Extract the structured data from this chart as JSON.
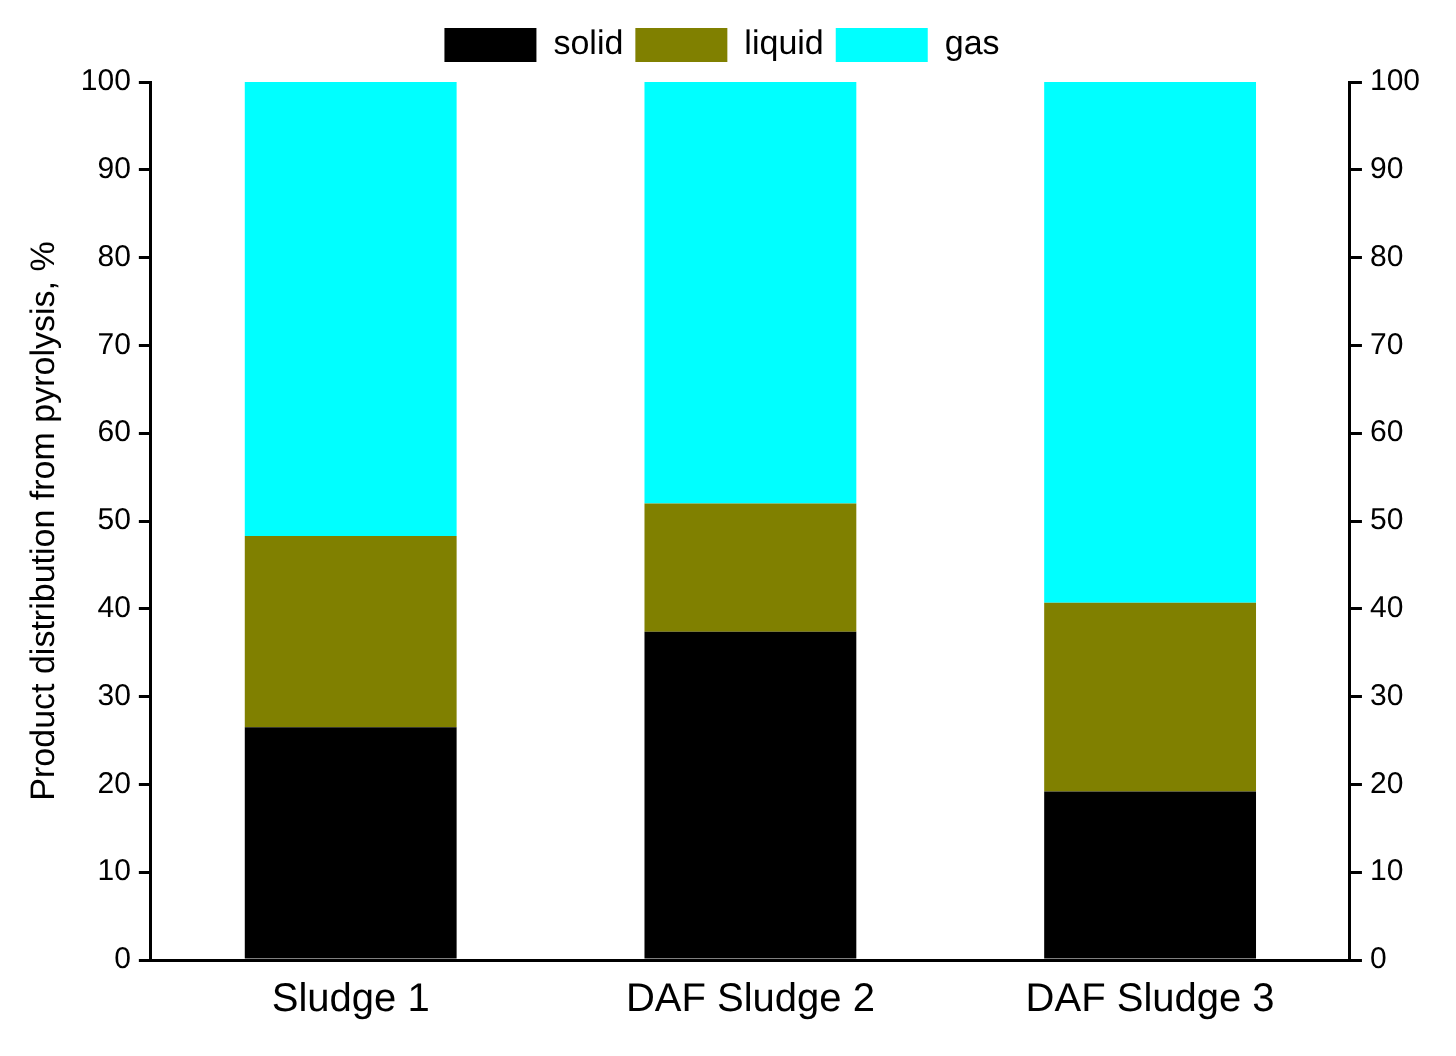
{
  "chart_data": {
    "type": "bar",
    "stacked": true,
    "ylabel": "Product distribution from pyrolysis, %",
    "categories": [
      "Sludge 1",
      "DAF Sludge 2",
      "DAF Sludge 3"
    ],
    "series": [
      {
        "name": "solid",
        "color": "#000000",
        "values": [
          26.5,
          37.4,
          19.2
        ]
      },
      {
        "name": "liquid",
        "color": "#808000",
        "values": [
          21.8,
          14.6,
          21.5
        ]
      },
      {
        "name": "gas",
        "color": "#00ffff",
        "values": [
          51.7,
          48.0,
          59.3
        ]
      }
    ],
    "ylim": [
      0,
      100
    ],
    "yticks": [
      0,
      10,
      20,
      30,
      40,
      50,
      60,
      70,
      80,
      90,
      100
    ],
    "y2lim": [
      0,
      100
    ],
    "y2ticks": [
      0,
      10,
      20,
      30,
      40,
      50,
      60,
      70,
      80,
      90,
      100
    ],
    "grid": false,
    "legend": "top"
  }
}
